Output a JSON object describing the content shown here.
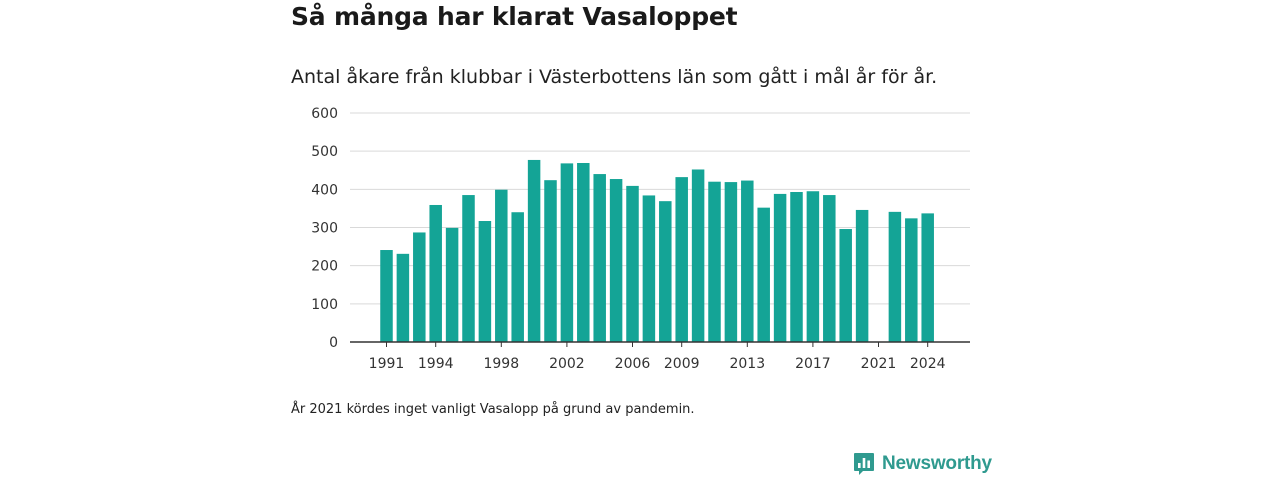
{
  "header": {
    "title": "Så många har klarat Vasaloppet",
    "subtitle": "Antal åkare från klubbar i Västerbottens län som gått i mål år för år."
  },
  "footer": {
    "note": "År 2021 kördes inget vanligt Vasalopp på grund av pandemin.",
    "brand": "Newsworthy"
  },
  "colors": {
    "bar": "#14a496",
    "grid": "#d9d9d9",
    "axis": "#333333",
    "brand": "#2f9a8f"
  },
  "chart_data": {
    "type": "bar",
    "categories": [
      1991,
      1992,
      1993,
      1994,
      1995,
      1996,
      1997,
      1998,
      1999,
      2000,
      2001,
      2002,
      2003,
      2004,
      2005,
      2006,
      2007,
      2008,
      2009,
      2010,
      2011,
      2012,
      2013,
      2014,
      2015,
      2016,
      2017,
      2018,
      2019,
      2020,
      2021,
      2022,
      2023,
      2024
    ],
    "values": [
      241,
      231,
      287,
      359,
      299,
      385,
      317,
      399,
      340,
      477,
      424,
      468,
      469,
      440,
      427,
      409,
      384,
      369,
      432,
      452,
      420,
      419,
      423,
      352,
      388,
      393,
      395,
      385,
      296,
      346,
      null,
      341,
      324,
      337
    ],
    "x_tick_labels": [
      1991,
      1994,
      1998,
      2002,
      2006,
      2009,
      2013,
      2017,
      2021,
      2024
    ],
    "y_ticks": [
      0,
      100,
      200,
      300,
      400,
      500,
      600
    ],
    "ylim": [
      0,
      600
    ],
    "grid": true
  }
}
